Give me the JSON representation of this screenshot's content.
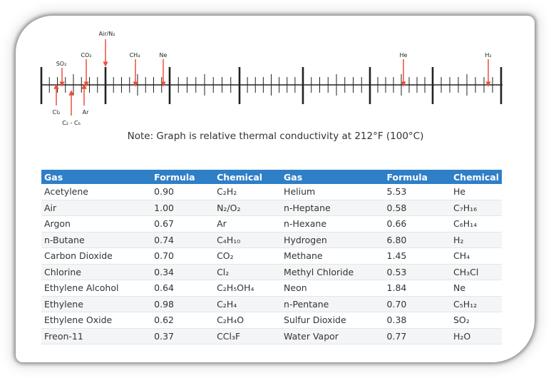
{
  "scale": {
    "labels_top": [
      "Air/N₂",
      "SO₂",
      "CO₂",
      "CH₄",
      "Ne",
      "He",
      "H₂"
    ],
    "labels_bottom": [
      "Cl₂",
      "Ar",
      "C₂ - C₆"
    ]
  },
  "note": "Note: Graph is relative thermal conductivity at 212°F (100°C)",
  "table": {
    "headers": [
      "Gas",
      "Formula",
      "Chemical",
      "Gas",
      "Formula",
      "Chemical"
    ],
    "rows": [
      [
        "Acetylene",
        "0.90",
        "C₂H₂",
        "Helium",
        "5.53",
        "He"
      ],
      [
        "Air",
        "1.00",
        "N₂/O₂",
        "n-Heptane",
        "0.58",
        "C₇H₁₆"
      ],
      [
        "Argon",
        "0.67",
        "Ar",
        "n-Hexane",
        "0.66",
        "C₆H₁₄"
      ],
      [
        "n-Butane",
        "0.74",
        "C₄H₁₀",
        "Hydrogen",
        "6.80",
        "H₂"
      ],
      [
        "Carbon Dioxide",
        "0.70",
        "CO₂",
        "Methane",
        "1.45",
        "CH₄"
      ],
      [
        "Chlorine",
        "0.34",
        "Cl₂",
        "Methyl Chloride",
        "0.53",
        "CH₃Cl"
      ],
      [
        "Ethylene Alcohol",
        "0.64",
        "C₂H₅OH₄",
        "Neon",
        "1.84",
        "Ne"
      ],
      [
        "Ethylene",
        "0.98",
        "C₂H₄",
        "n-Pentane",
        "0.70",
        "C₅H₁₂"
      ],
      [
        "Ethylene Oxide",
        "0.62",
        "C₂H₄O",
        "Sulfur Dioxide",
        "0.38",
        "SO₂"
      ],
      [
        "Freon-11",
        "0.37",
        "CCl₃F",
        "Water Vapor",
        "0.77",
        "H₂O"
      ]
    ]
  },
  "colors": {
    "arrow": "#e8503a",
    "header": "#2f7fc7"
  }
}
